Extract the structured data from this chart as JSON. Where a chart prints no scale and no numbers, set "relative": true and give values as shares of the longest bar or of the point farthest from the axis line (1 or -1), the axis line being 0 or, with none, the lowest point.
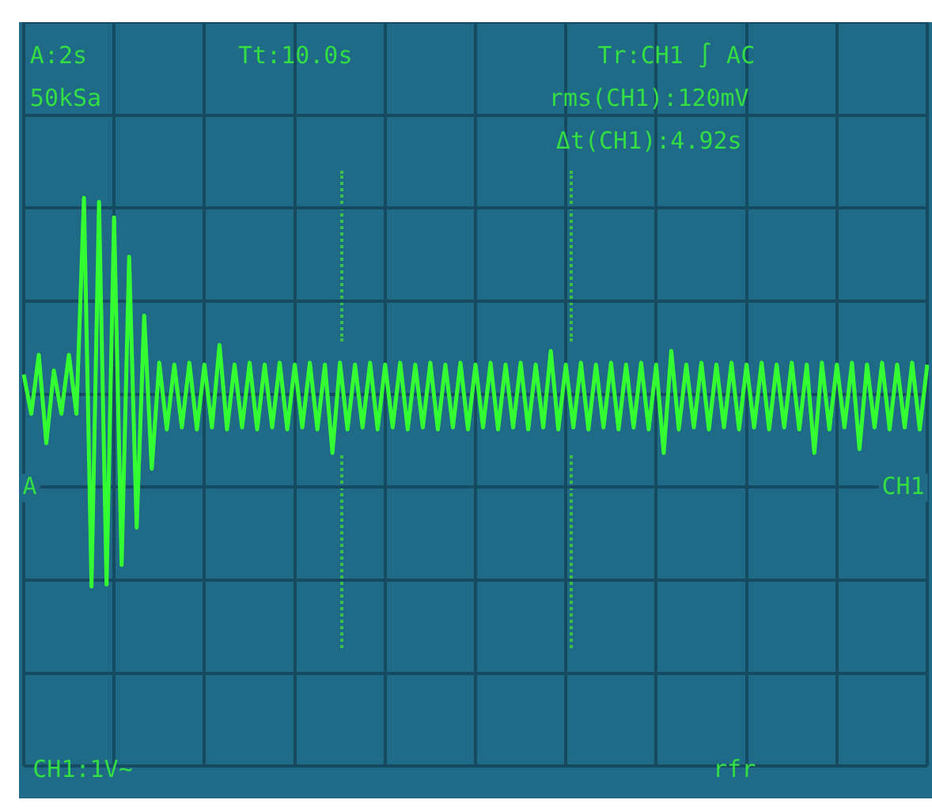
{
  "chart_data": {
    "type": "line",
    "relative": true,
    "categories": [
      null,
      null,
      null,
      null,
      null,
      null,
      null,
      null,
      null,
      null,
      null,
      null,
      null,
      null,
      null,
      null,
      null,
      null,
      null,
      null,
      null,
      null,
      null,
      null,
      null,
      null,
      null,
      null,
      null,
      null,
      null,
      null,
      null,
      null,
      null,
      null,
      null,
      null,
      null,
      null,
      null,
      null,
      null,
      null,
      null,
      null,
      null,
      null,
      null,
      null,
      null,
      null,
      null,
      null,
      null,
      null,
      null,
      null,
      null,
      null,
      null,
      null,
      null,
      null,
      null,
      null,
      null,
      null,
      null,
      null,
      null,
      null,
      null,
      null,
      null,
      null,
      null,
      null,
      null,
      null,
      null,
      null,
      null,
      null,
      null,
      null,
      null,
      null,
      null,
      null,
      null,
      null,
      null,
      null,
      null,
      null,
      null,
      null,
      null,
      null,
      null,
      null,
      null,
      null,
      null,
      null,
      null,
      null,
      null,
      null,
      null,
      null,
      null,
      null,
      null,
      null,
      null,
      null,
      null,
      null,
      null
    ],
    "series": [
      {
        "color": "#33ff33",
        "values": [
          0.1,
          -0.1,
          0.2,
          -0.25,
          0.12,
          -0.1,
          0.2,
          -0.1,
          1.0,
          -0.98,
          0.98,
          -0.97,
          0.9,
          -0.87,
          0.7,
          -0.68,
          0.4,
          -0.38,
          0.16,
          -0.18,
          0.15,
          -0.17,
          0.16,
          -0.18,
          0.15,
          -0.17,
          0.25,
          -0.18,
          0.15,
          -0.17,
          0.16,
          -0.18,
          0.15,
          -0.17,
          0.16,
          -0.18,
          0.15,
          -0.17,
          0.16,
          -0.18,
          0.15,
          -0.3,
          0.16,
          -0.18,
          0.15,
          -0.17,
          0.16,
          -0.18,
          0.15,
          -0.17,
          0.16,
          -0.18,
          0.15,
          -0.17,
          0.16,
          -0.18,
          0.15,
          -0.17,
          0.16,
          -0.18,
          0.15,
          -0.17,
          0.16,
          -0.18,
          0.15,
          -0.17,
          0.16,
          -0.18,
          0.15,
          -0.17,
          0.22,
          -0.18,
          0.15,
          -0.17,
          0.16,
          -0.18,
          0.15,
          -0.17,
          0.16,
          -0.18,
          0.15,
          -0.17,
          0.16,
          -0.18,
          0.15,
          -0.3,
          0.22,
          -0.18,
          0.15,
          -0.17,
          0.16,
          -0.18,
          0.15,
          -0.17,
          0.16,
          -0.18,
          0.15,
          -0.17,
          0.16,
          -0.18,
          0.15,
          -0.17,
          0.16,
          -0.18,
          0.15,
          -0.3,
          0.16,
          -0.18,
          0.15,
          -0.17,
          0.16,
          -0.28,
          0.15,
          -0.17,
          0.16,
          -0.18,
          0.15,
          -0.17,
          0.16,
          -0.18,
          0.15
        ]
      }
    ],
    "grid": true,
    "legend": false,
    "marker": "none",
    "line_style": "solid",
    "annotations": [
      "A:2s",
      "50kSa",
      "Tt:10.0s",
      "Tr:CH1 ∫ AC",
      "rms(CH1):120mV",
      "Δt(CH1):4.92s",
      "CH1:1V~",
      "rfr",
      "CH1",
      "A"
    ]
  }
}
